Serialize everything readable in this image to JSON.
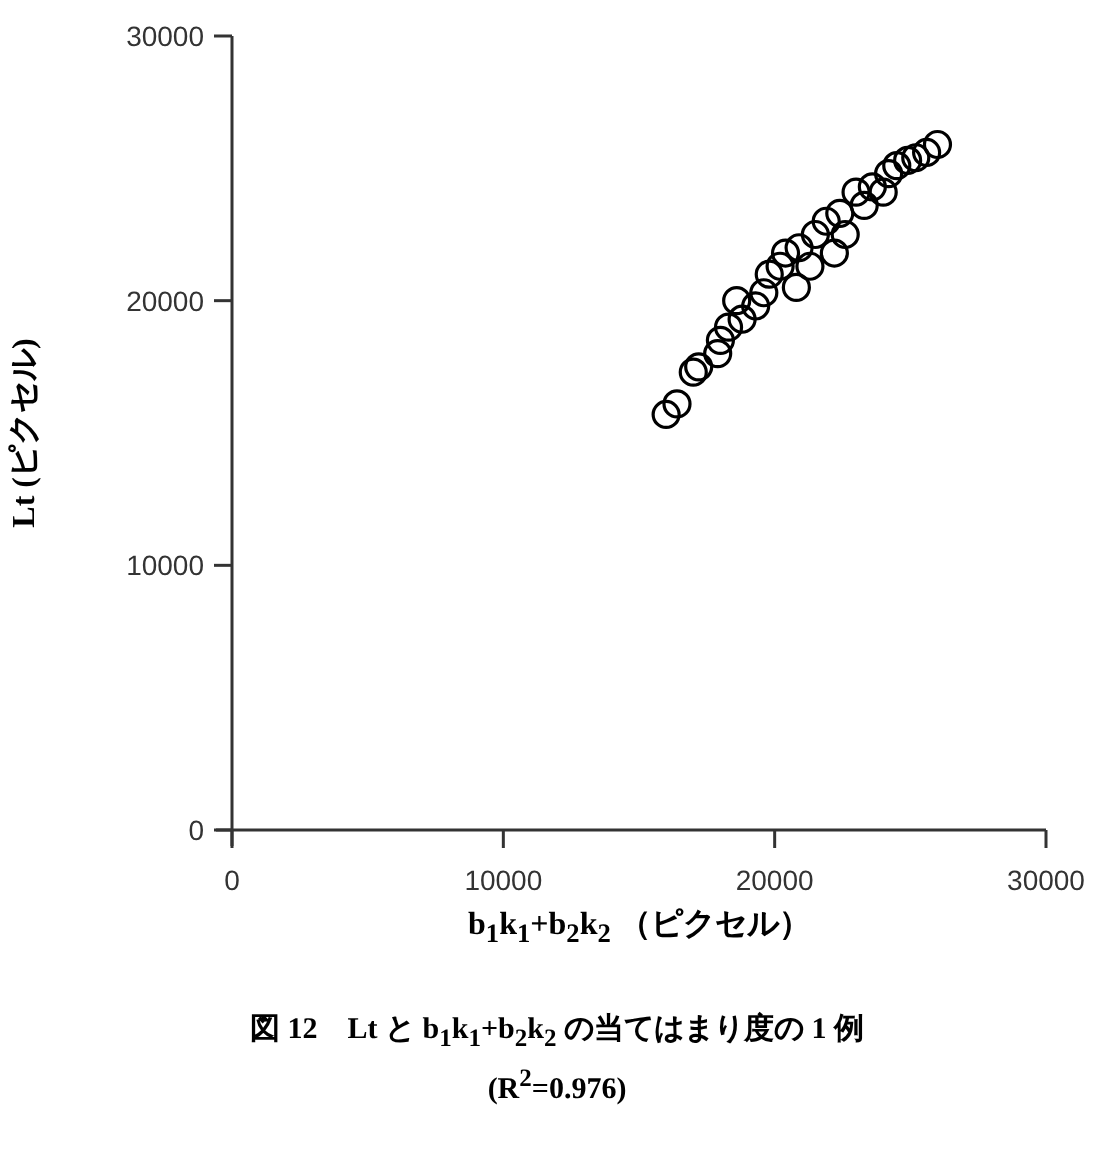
{
  "chart_data": {
    "type": "scatter",
    "title": "図 12　Lt と b$_{1}$k$_{1}$+b$_{2}$k$_{2}$ の当てはまり度の 1 例",
    "subtitle": "(R$^{2}$=0.976)",
    "xlabel": "b$_{1}$k$_{1}$+b$_{2}$k$_{2}$ （ピクセル）",
    "ylabel": "Lt (ピクセル)",
    "xlim": [
      0,
      30000
    ],
    "ylim": [
      0,
      30000
    ],
    "xticks": [
      0,
      10000,
      20000,
      30000
    ],
    "yticks": [
      0,
      10000,
      20000,
      30000
    ],
    "grid": false,
    "marker": "circle",
    "series": [
      {
        "color": "#000000",
        "x": [
          16000,
          16400,
          17000,
          17200,
          17900,
          18000,
          18300,
          18600,
          18800,
          19300,
          19600,
          19800,
          20200,
          20400,
          20800,
          20900,
          21300,
          21500,
          21900,
          22200,
          22400,
          22600,
          23000,
          23300,
          23600,
          24000,
          24200,
          24500,
          24900,
          25200,
          25600,
          26000
        ],
        "values": [
          15700,
          16100,
          17300,
          17500,
          18000,
          18500,
          19000,
          20000,
          19300,
          19800,
          20300,
          21000,
          21300,
          21800,
          20500,
          22000,
          21300,
          22500,
          23000,
          21800,
          23300,
          22500,
          24100,
          23600,
          24300,
          24100,
          24800,
          25100,
          25300,
          25400,
          25600,
          25900
        ]
      }
    ]
  }
}
